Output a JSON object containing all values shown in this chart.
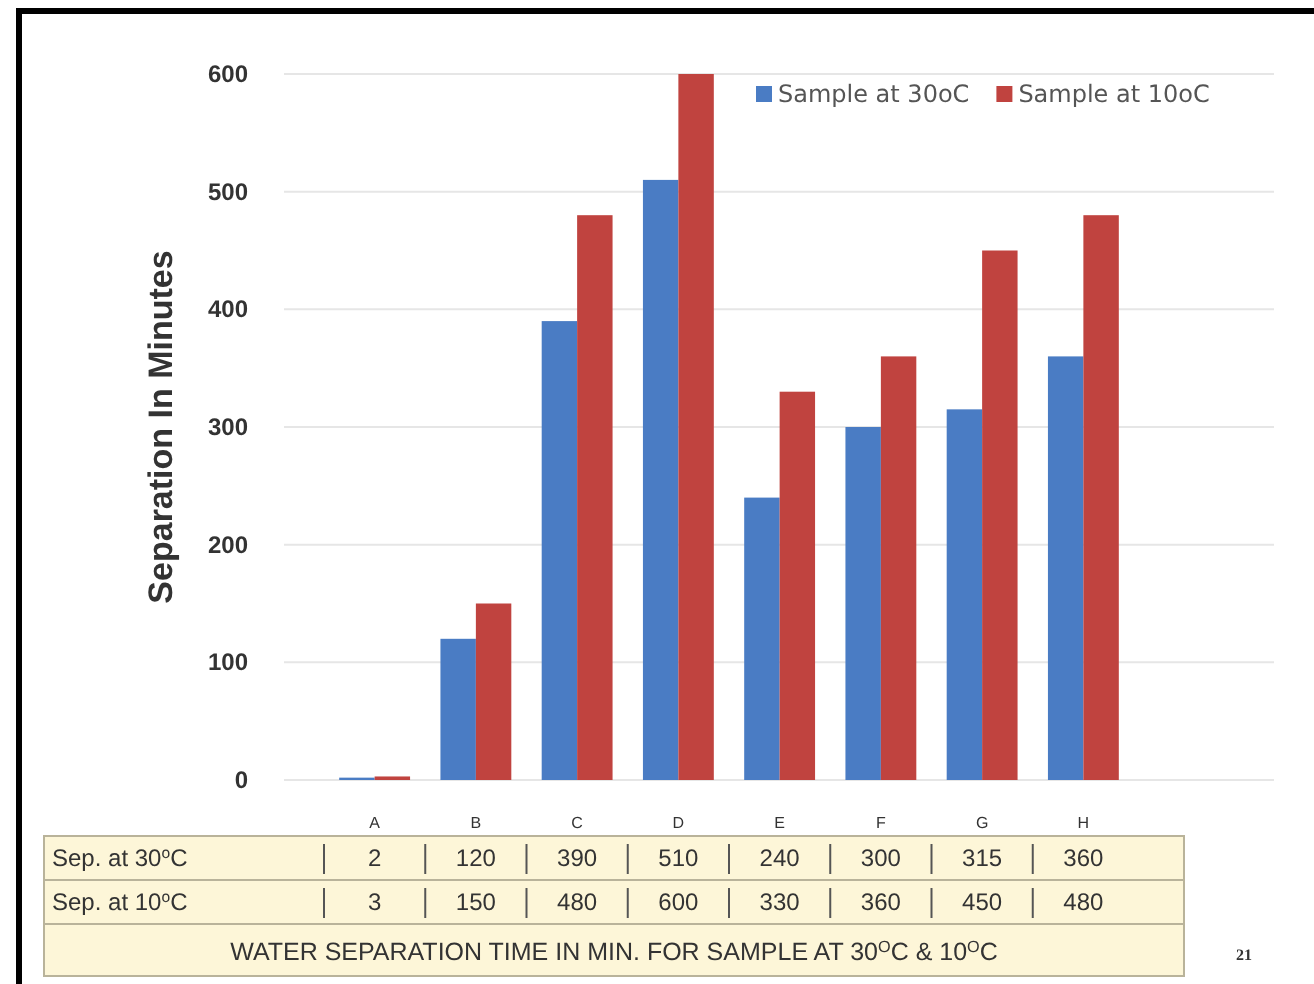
{
  "chart_data": {
    "type": "bar",
    "title": "WATER SEPARATION TIME IN MIN. FOR SAMPLE AT 30$^{O}$C & 10$^{O}$C",
    "ylabel": "Separation In Minutes",
    "categories": [
      "A",
      "B",
      "C",
      "D",
      "E",
      "F",
      "G",
      "H"
    ],
    "series": [
      {
        "name": "Sample at 30oC",
        "color": "#4a7cc4",
        "values": [
          2,
          120,
          390,
          510,
          240,
          300,
          315,
          360
        ]
      },
      {
        "name": "Sample at 10oC",
        "color": "#c0433f",
        "values": [
          3,
          150,
          480,
          600,
          330,
          360,
          450,
          480
        ]
      }
    ],
    "ylim": [
      0,
      600
    ],
    "yticks": [
      0,
      100,
      200,
      300,
      400,
      500,
      600
    ],
    "grid": "y",
    "legend": "top right",
    "data_labels": true,
    "annotations": [
      "Sep. at 30$^{o}$C",
      "Sep. at 10$^{o}$C",
      "21"
    ]
  }
}
